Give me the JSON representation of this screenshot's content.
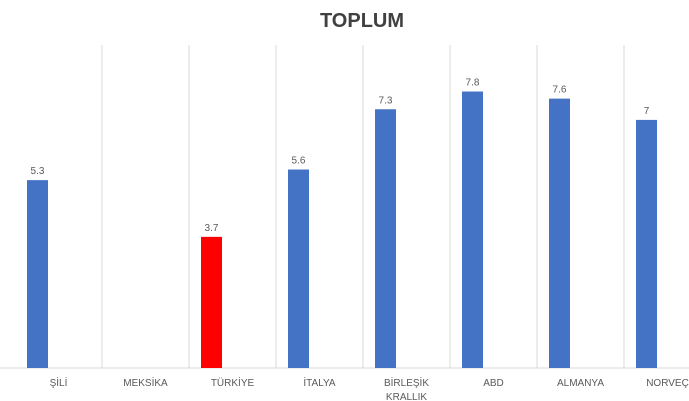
{
  "chart_data": {
    "type": "bar",
    "title": "TOPLUM",
    "categories": [
      "ŞİLİ",
      "MEKSİKA",
      "TÜRKİYE",
      "İTALYA",
      "BİRLEŞİK KRALLIK",
      "ABD",
      "ALMANYA",
      "NORVEÇ"
    ],
    "values": [
      5.3,
      null,
      3.7,
      5.6,
      7.3,
      7.8,
      7.6,
      7
    ],
    "colors": [
      "#4472c4",
      "#4472c4",
      "#ff0000",
      "#4472c4",
      "#4472c4",
      "#4472c4",
      "#4472c4",
      "#4472c4"
    ],
    "ylim": [
      0,
      9
    ]
  }
}
